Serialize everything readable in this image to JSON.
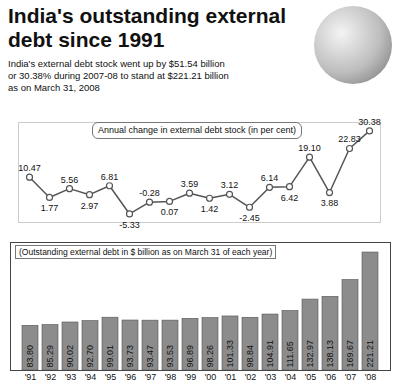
{
  "title": "India's outstanding external debt since 1991",
  "subtitle": "India's external debt stock went up by $51.54 billion or 30.38% during 2007-08 to stand at $221.21 billion as on March 31, 2008",
  "chart_data": [
    {
      "type": "line",
      "title": "Annual change in external debt stock (in per cent)",
      "categories": [
        "'91",
        "'92",
        "'93",
        "'94",
        "'95",
        "'96",
        "'97",
        "'98",
        "'99",
        "'00",
        "'01",
        "'02",
        "'03",
        "'04",
        "'05",
        "'06",
        "'07",
        "'08"
      ],
      "values": [
        10.47,
        1.77,
        5.56,
        2.97,
        6.81,
        -5.33,
        -0.28,
        0.07,
        3.59,
        1.42,
        3.12,
        -2.45,
        6.14,
        6.42,
        19.1,
        3.88,
        22.83,
        30.38
      ],
      "value_labels": [
        "10.47",
        "1.77",
        "5.56",
        "2.97",
        "6.81",
        "-5.33",
        "-0.28",
        "0.07",
        "3.59",
        "1.42",
        "3.12",
        "-2.45",
        "6.14",
        "6.42",
        "19.10",
        "3.88",
        "22.83",
        "30.38"
      ],
      "data_labels": true,
      "tick_labels": false,
      "ylim": [
        -9,
        34
      ],
      "color": "#555555",
      "marker": "circle"
    },
    {
      "type": "bar",
      "title": "(Outstanding external debt in $ billion as on March 31 of each year)",
      "categories": [
        "'91",
        "'92",
        "'93",
        "'94",
        "'95",
        "'96",
        "'97",
        "'98",
        "'99",
        "'00",
        "'01",
        "'02",
        "'03",
        "'04",
        "'05",
        "'06",
        "'07",
        "'08"
      ],
      "values": [
        83.8,
        85.29,
        90.02,
        92.7,
        99.01,
        93.73,
        93.47,
        93.53,
        96.89,
        98.26,
        101.33,
        98.84,
        104.91,
        111.65,
        132.97,
        138.13,
        169.67,
        221.21
      ],
      "value_labels": [
        "83.80",
        "85.29",
        "90.02",
        "92.70",
        "99.01",
        "93.73",
        "93.47",
        "93.53",
        "96.89",
        "98.26",
        "101.33",
        "98.84",
        "104.91",
        "111.65",
        "132.97",
        "138.13",
        "169.67",
        "221.21"
      ],
      "data_labels": true,
      "tick_labels": "x",
      "ylim": [
        0,
        240
      ],
      "color": "#8c8c8c"
    }
  ]
}
